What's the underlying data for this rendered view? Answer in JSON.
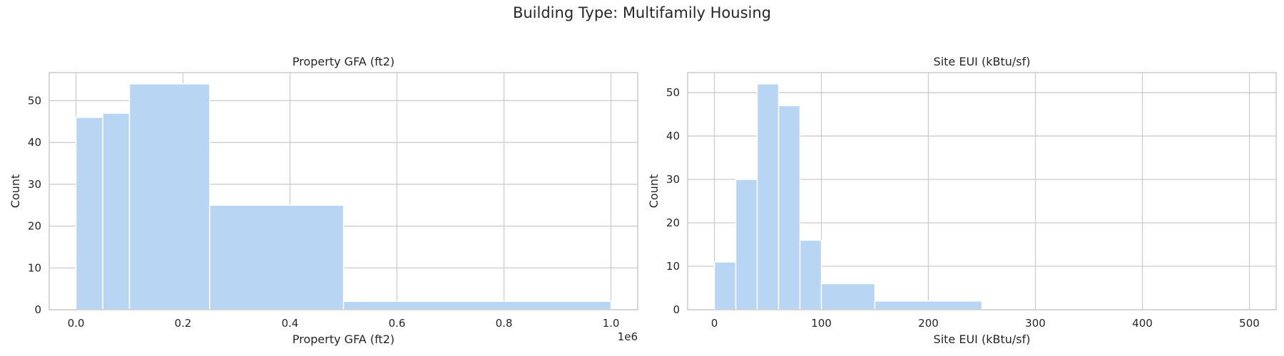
{
  "figure": {
    "suptitle": "Building Type: Multifamily Housing",
    "colors": {
      "bar": "#b8d6f4",
      "bar_edge": "#ffffff",
      "grid": "#cccccc",
      "background": "#ffffff",
      "text": "#262626"
    }
  },
  "chart_data": [
    {
      "type": "bar",
      "title": "Property GFA (ft2)",
      "xlabel": "Property GFA (ft2)",
      "ylabel": "Count",
      "x_offset_text": "1e6",
      "xlim": [
        -0.05,
        1.05
      ],
      "ylim": [
        0,
        56.7
      ],
      "xticks": [
        0.0,
        0.2,
        0.4,
        0.6,
        0.8,
        1.0
      ],
      "xtick_labels": [
        "0.0",
        "0.2",
        "0.4",
        "0.6",
        "0.8",
        "1.0"
      ],
      "yticks": [
        0,
        10,
        20,
        30,
        40,
        50
      ],
      "grid": true,
      "bins": [
        {
          "x0": 0.0,
          "x1": 0.05,
          "count": 46
        },
        {
          "x0": 0.05,
          "x1": 0.1,
          "count": 47
        },
        {
          "x0": 0.1,
          "x1": 0.25,
          "count": 54
        },
        {
          "x0": 0.25,
          "x1": 0.5,
          "count": 25
        },
        {
          "x0": 0.5,
          "x1": 1.0,
          "count": 2
        }
      ]
    },
    {
      "type": "bar",
      "title": "Site EUI (kBtu/sf)",
      "xlabel": "Site EUI (kBtu/sf)",
      "ylabel": "Count",
      "xlim": [
        -25,
        525
      ],
      "ylim": [
        0,
        54.6
      ],
      "xticks": [
        0,
        100,
        200,
        300,
        400,
        500
      ],
      "xtick_labels": [
        "0",
        "100",
        "200",
        "300",
        "400",
        "500"
      ],
      "yticks": [
        0,
        10,
        20,
        30,
        40,
        50
      ],
      "grid": true,
      "bins": [
        {
          "x0": 0,
          "x1": 20,
          "count": 11
        },
        {
          "x0": 20,
          "x1": 40,
          "count": 30
        },
        {
          "x0": 40,
          "x1": 60,
          "count": 52
        },
        {
          "x0": 60,
          "x1": 80,
          "count": 47
        },
        {
          "x0": 80,
          "x1": 100,
          "count": 16
        },
        {
          "x0": 100,
          "x1": 150,
          "count": 6
        },
        {
          "x0": 150,
          "x1": 250,
          "count": 2
        },
        {
          "x0": 250,
          "x1": 500,
          "count": 0
        }
      ]
    }
  ]
}
